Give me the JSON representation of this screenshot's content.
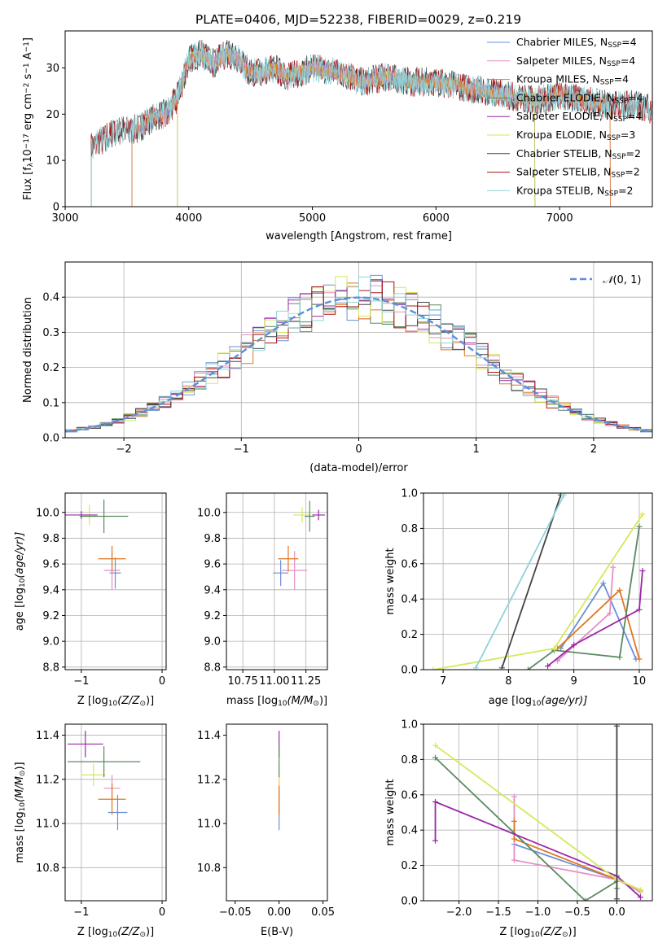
{
  "figure_title": "PLATE=0406, MJD=52238, FIBERID=0029, z=0.219",
  "colors": {
    "Chabrier MILES": "#6a8fd8",
    "Salpeter MILES": "#e58fc4",
    "Kroupa MILES": "#e0761f",
    "Chabrier ELODIE": "#5a8a5f",
    "Salpeter ELODIE": "#9a27a8",
    "Kroupa ELODIE": "#d6e85a",
    "Chabrier STELIB": "#444444",
    "Salpeter STELIB": "#a8151a",
    "Kroupa STELIB": "#8ed4d8",
    "gaussian": "#5b8fd9"
  },
  "chart_data": [
    {
      "type": "line",
      "id": "spectrum",
      "xlabel": "wavelength [Angstrom, rest frame]",
      "ylabel": "Flux [f",
      "ylabel_parts": [
        "Flux [f",
        "λ",
        "10",
        "−17",
        " erg cm",
        "−2",
        " s",
        "−1",
        " A",
        "−1",
        "]"
      ],
      "xlim": [
        3000,
        7750
      ],
      "ylim": [
        0,
        38
      ],
      "xticks": [
        3000,
        4000,
        5000,
        6000,
        7000
      ],
      "yticks": [
        0,
        10,
        20,
        30
      ],
      "grid": false,
      "legend_position": "top-right",
      "legend": [
        {
          "model": "Chabrier MILES",
          "label": "Chabrier MILES, N",
          "sub": "SSP",
          "suffix": "=4"
        },
        {
          "model": "Salpeter MILES",
          "label": "Salpeter MILES, N",
          "sub": "SSP",
          "suffix": "=4"
        },
        {
          "model": "Kroupa MILES",
          "label": "Kroupa MILES, N",
          "sub": "SSP",
          "suffix": "=4"
        },
        {
          "model": "Chabrier ELODIE",
          "label": "Chabrier ELODIE, N",
          "sub": "SSP",
          "suffix": "=4"
        },
        {
          "model": "Salpeter ELODIE",
          "label": "Salpeter ELODIE, N",
          "sub": "SSP",
          "suffix": "=4"
        },
        {
          "model": "Kroupa ELODIE",
          "label": "Kroupa ELODIE, N",
          "sub": "SSP",
          "suffix": "=3"
        },
        {
          "model": "Chabrier STELIB",
          "label": "Chabrier STELIB, N",
          "sub": "SSP",
          "suffix": "=2"
        },
        {
          "model": "Salpeter STELIB",
          "label": "Salpeter STELIB, N",
          "sub": "SSP",
          "suffix": "=2"
        },
        {
          "model": "Kroupa STELIB",
          "label": "Kroupa STELIB, N",
          "sub": "SSP",
          "suffix": "=2"
        }
      ],
      "continuum": {
        "x": [
          3200,
          3300,
          3400,
          3500,
          3600,
          3700,
          3800,
          3900,
          3950,
          4000,
          4100,
          4200,
          4300,
          4400,
          4500,
          4600,
          4700,
          4800,
          4900,
          5000,
          5200,
          5400,
          5600,
          5800,
          6000,
          6200,
          6400,
          6600,
          6800,
          7000,
          7200,
          7400,
          7600,
          7750
        ],
        "y": [
          13,
          14.5,
          16,
          16.5,
          17,
          19,
          20,
          23,
          27,
          32,
          33,
          31,
          33,
          32,
          29,
          29,
          30,
          28,
          29,
          30,
          29,
          27,
          28,
          27,
          27,
          26,
          25,
          24,
          23,
          24,
          23,
          22,
          22,
          21
        ]
      },
      "model_coverage": {
        "Chabrier MILES": [
          3540,
          7410
        ],
        "Salpeter MILES": [
          3540,
          7410
        ],
        "Kroupa MILES": [
          3540,
          7410
        ],
        "Chabrier ELODIE": [
          3910,
          6800
        ],
        "Salpeter ELODIE": [
          3910,
          6800
        ],
        "Kroupa ELODIE": [
          3910,
          6800
        ],
        "Chabrier STELIB": [
          3210,
          7750
        ],
        "Salpeter STELIB": [
          3210,
          7750
        ],
        "Kroupa STELIB": [
          3210,
          7750
        ]
      }
    },
    {
      "type": "histogram",
      "id": "residuals",
      "xlabel": "(data-model)/error",
      "ylabel": "Normed distribution",
      "xlim": [
        -2.5,
        2.5
      ],
      "ylim": [
        0,
        0.5
      ],
      "xticks": [
        -2,
        -1,
        0,
        1,
        2
      ],
      "yticks": [
        0.0,
        0.1,
        0.2,
        0.3,
        0.4
      ],
      "grid": true,
      "legend_position": "top-right",
      "legend": [
        {
          "label": "N(0,1)",
          "parts": [
            "𝒩",
            "(0, 1)"
          ]
        }
      ],
      "bin_width": 0.1,
      "curve": {
        "name": "N(0,1)",
        "mean": 0,
        "sigma": 1
      }
    },
    {
      "type": "scatter",
      "id": "age_vs_Z",
      "xlabel": "Z [log",
      "xlabel_parts": [
        "Z [log",
        "10",
        "(Z/Z",
        "⊙",
        ")]"
      ],
      "ylabel_parts": [
        "age  [log",
        "10",
        "(age/yr)]"
      ],
      "xlim": [
        -1.2,
        0.05
      ],
      "ylim": [
        8.78,
        10.15
      ],
      "xticks": [
        -1,
        0
      ],
      "yticks": [
        8.8,
        9.0,
        9.2,
        9.4,
        9.6,
        9.8,
        10.0
      ],
      "grid": true,
      "points": [
        {
          "model": "Chabrier MILES",
          "x": -0.58,
          "xerr": 0.07,
          "y": 9.53,
          "yerr": 0.12
        },
        {
          "model": "Salpeter MILES",
          "x": -0.62,
          "xerr": 0.1,
          "y": 9.55,
          "yerr": 0.15
        },
        {
          "model": "Kroupa MILES",
          "x": -0.62,
          "xerr": 0.17,
          "y": 9.64,
          "yerr": 0.1
        },
        {
          "model": "Kroupa ELODIE",
          "x": -0.9,
          "xerr": 0.1,
          "y": 9.98,
          "yerr": 0.08
        },
        {
          "model": "Salpeter ELODIE",
          "x": -1.0,
          "xerr": 0.2,
          "y": 9.98,
          "yerr": 0.03
        },
        {
          "model": "Chabrier ELODIE",
          "x": -0.72,
          "xerr": 0.3,
          "y": 9.97,
          "yerr": 0.13
        }
      ]
    },
    {
      "type": "scatter",
      "id": "age_vs_mass",
      "xlabel_parts": [
        "mass [log",
        "10",
        "(M/M",
        "⊙",
        ")]"
      ],
      "xlim": [
        10.62,
        11.42
      ],
      "ylim": [
        8.78,
        10.15
      ],
      "xticks": [
        10.75,
        11.0,
        11.25
      ],
      "xtick_labels": [
        "10.75",
        "11.00",
        "11.25"
      ],
      "yticks": [
        8.8,
        9.0,
        9.2,
        9.4,
        9.6,
        9.8,
        10.0
      ],
      "grid": true,
      "points": [
        {
          "model": "Chabrier MILES",
          "x": 11.05,
          "xerr": 0.06,
          "y": 9.53,
          "yerr": 0.1
        },
        {
          "model": "Salpeter MILES",
          "x": 11.16,
          "xerr": 0.1,
          "y": 9.55,
          "yerr": 0.15
        },
        {
          "model": "Kroupa MILES",
          "x": 11.11,
          "xerr": 0.08,
          "y": 9.64,
          "yerr": 0.1
        },
        {
          "model": "Kroupa ELODIE",
          "x": 11.22,
          "xerr": 0.07,
          "y": 9.98,
          "yerr": 0.06
        },
        {
          "model": "Salpeter ELODIE",
          "x": 11.35,
          "xerr": 0.05,
          "y": 9.98,
          "yerr": 0.04
        },
        {
          "model": "Chabrier ELODIE",
          "x": 11.28,
          "xerr": 0.04,
          "y": 9.97,
          "yerr": 0.12
        }
      ]
    },
    {
      "type": "line",
      "id": "mass_weight_vs_age",
      "xlabel_parts": [
        "age  [log",
        "10",
        "(age/yr)]"
      ],
      "ylabel": "mass weight",
      "xlim": [
        6.7,
        10.2
      ],
      "ylim": [
        0,
        1.0
      ],
      "xticks": [
        7,
        8,
        9,
        10
      ],
      "yticks": [
        0.0,
        0.2,
        0.4,
        0.6,
        0.8,
        1.0
      ],
      "grid": true,
      "series": [
        {
          "model": "Chabrier MILES",
          "x": [
            8.8,
            9.45,
            9.95
          ],
          "y": [
            0.12,
            0.49,
            0.06
          ]
        },
        {
          "model": "Salpeter MILES",
          "x": [
            8.75,
            9.55,
            9.6
          ],
          "y": [
            0.05,
            0.32,
            0.58
          ]
        },
        {
          "model": "Kroupa MILES",
          "x": [
            8.75,
            9.7,
            10.0
          ],
          "y": [
            0.12,
            0.45,
            0.06
          ]
        },
        {
          "model": "Chabrier ELODIE",
          "x": [
            8.3,
            8.7,
            9.7,
            10.0
          ],
          "y": [
            0.0,
            0.11,
            0.07,
            0.81
          ]
        },
        {
          "model": "Salpeter ELODIE",
          "x": [
            8.6,
            9.0,
            10.0,
            10.05
          ],
          "y": [
            0.02,
            0.14,
            0.34,
            0.56
          ]
        },
        {
          "model": "Kroupa ELODIE",
          "x": [
            6.85,
            8.7,
            10.05
          ],
          "y": [
            0.0,
            0.12,
            0.88
          ]
        },
        {
          "model": "Chabrier STELIB",
          "x": [
            7.9,
            8.8
          ],
          "y": [
            0.01,
            0.99
          ]
        },
        {
          "model": "Kroupa STELIB",
          "x": [
            7.5,
            8.85
          ],
          "y": [
            0.01,
            0.99
          ]
        }
      ]
    },
    {
      "type": "scatter",
      "id": "mass_vs_Z",
      "xlabel_parts": [
        "Z [log",
        "10",
        "(Z/Z",
        "⊙",
        ")]"
      ],
      "ylabel_parts": [
        "mass [log",
        "10",
        "(M/M",
        "⊙",
        ")]"
      ],
      "xlim": [
        -1.2,
        0.05
      ],
      "ylim": [
        10.65,
        11.45
      ],
      "xticks": [
        -1,
        0
      ],
      "yticks": [
        10.8,
        11.0,
        11.2,
        11.4
      ],
      "grid": true,
      "points": [
        {
          "model": "Chabrier MILES",
          "x": -0.55,
          "xerr": 0.12,
          "y": 11.05,
          "yerr": 0.08
        },
        {
          "model": "Salpeter MILES",
          "x": -0.62,
          "xerr": 0.1,
          "y": 11.16,
          "yerr": 0.06
        },
        {
          "model": "Kroupa MILES",
          "x": -0.62,
          "xerr": 0.17,
          "y": 11.11,
          "yerr": 0.07
        },
        {
          "model": "Kroupa ELODIE",
          "x": -0.85,
          "xerr": 0.15,
          "y": 11.22,
          "yerr": 0.05
        },
        {
          "model": "Salpeter ELODIE",
          "x": -0.95,
          "xerr": 0.22,
          "y": 11.36,
          "yerr": 0.06
        },
        {
          "model": "Chabrier ELODIE",
          "x": -0.72,
          "xerr": 0.45,
          "y": 11.28,
          "yerr": 0.07
        }
      ]
    },
    {
      "type": "scatter",
      "id": "mass_vs_ebv",
      "xlabel": "E(B-V)",
      "xlim": [
        -0.06,
        0.055
      ],
      "ylim": [
        10.65,
        11.45
      ],
      "xticks": [
        -0.05,
        0.0,
        0.05
      ],
      "xtick_labels": [
        "−0.05",
        "0.00",
        "0.05"
      ],
      "yticks": [
        10.8,
        11.0,
        11.2,
        11.4
      ],
      "grid": false,
      "points": [
        {
          "model": "Chabrier MILES",
          "x": 0.0,
          "y": 11.05,
          "yerr": 0.08
        },
        {
          "model": "Salpeter MILES",
          "x": 0.0,
          "y": 11.16,
          "yerr": 0.06
        },
        {
          "model": "Kroupa MILES",
          "x": 0.0,
          "y": 11.11,
          "yerr": 0.07
        },
        {
          "model": "Kroupa ELODIE",
          "x": 0.0,
          "y": 11.22,
          "yerr": 0.05
        },
        {
          "model": "Salpeter ELODIE",
          "x": 0.0,
          "y": 11.36,
          "yerr": 0.06
        },
        {
          "model": "Chabrier ELODIE",
          "x": 0.0,
          "y": 11.28,
          "yerr": 0.07
        }
      ]
    },
    {
      "type": "line",
      "id": "mass_weight_vs_Z",
      "xlabel_parts": [
        "Z [log",
        "10",
        "(Z/Z",
        "⊙",
        ")]"
      ],
      "ylabel": "mass weight",
      "xlim": [
        -2.45,
        0.45
      ],
      "ylim": [
        0,
        1.0
      ],
      "xticks": [
        -2.0,
        -1.5,
        -1.0,
        -0.5,
        0.0
      ],
      "xtick_labels": [
        "−2.0",
        "−1.5",
        "−1.0",
        "−0.5",
        "0.0"
      ],
      "yticks": [
        0.0,
        0.2,
        0.4,
        0.6,
        0.8,
        1.0
      ],
      "grid": true,
      "series": [
        {
          "model": "Chabrier MILES",
          "x": [
            -1.3,
            0.0,
            0.3
          ],
          "y": [
            0.32,
            0.12,
            0.06
          ]
        },
        {
          "model": "Salpeter MILES",
          "x": [
            -1.3,
            -1.3,
            0.0,
            0.3
          ],
          "y": [
            0.59,
            0.23,
            0.12,
            0.05
          ]
        },
        {
          "model": "Kroupa MILES",
          "x": [
            -1.3,
            -1.3,
            0.0,
            0.3
          ],
          "y": [
            0.45,
            0.35,
            0.12,
            0.06
          ]
        },
        {
          "model": "Chabrier ELODIE",
          "x": [
            -2.3,
            -0.4,
            0.0,
            0.0
          ],
          "y": [
            0.81,
            0.0,
            0.11,
            0.07
          ]
        },
        {
          "model": "Salpeter ELODIE",
          "x": [
            -2.3,
            -2.3,
            0.0,
            0.3
          ],
          "y": [
            0.34,
            0.56,
            0.14,
            0.02
          ]
        },
        {
          "model": "Kroupa ELODIE",
          "x": [
            -2.3,
            0.0,
            0.3
          ],
          "y": [
            0.88,
            0.12,
            0.06
          ]
        },
        {
          "model": "Kroupa STELIB",
          "x": [
            0.0,
            0.0
          ],
          "y": [
            0.01,
            0.99
          ]
        },
        {
          "model": "Chabrier STELIB",
          "x": [
            0.0,
            0.0
          ],
          "y": [
            0.01,
            0.99
          ]
        }
      ]
    }
  ]
}
